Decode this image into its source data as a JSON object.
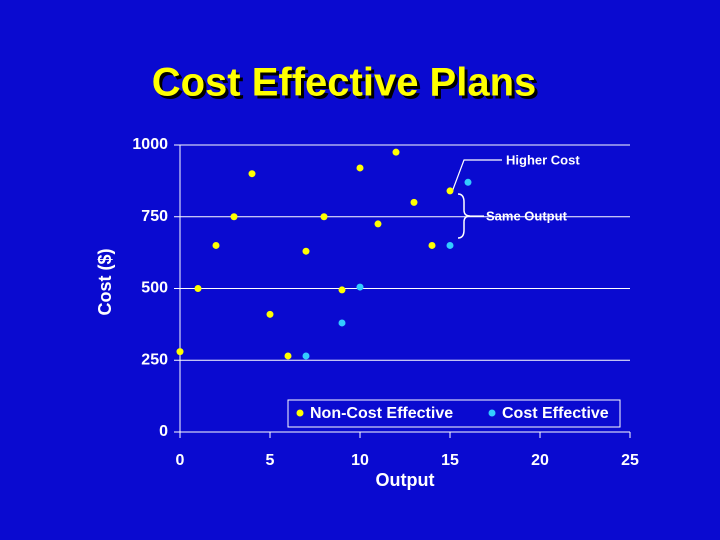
{
  "chart_data": {
    "type": "scatter",
    "title": "Cost Effective Plans",
    "x_label": "Output",
    "y_label": "Cost ($)",
    "xlim": [
      0,
      25
    ],
    "xticks": [
      0,
      5,
      10,
      15,
      20,
      25
    ],
    "ylim": [
      0,
      1000
    ],
    "yticks": [
      0,
      250,
      500,
      750,
      1000
    ],
    "grid": true,
    "legend": "bottom",
    "annotations": [
      "Higher Cost",
      "Same Output"
    ],
    "series": [
      {
        "name": "Non-Cost Effective",
        "color": "#ffff00",
        "x": [
          0,
          1,
          2,
          3,
          4,
          5,
          6,
          7,
          8,
          9,
          10,
          11,
          12,
          13,
          14,
          15
        ],
        "values": [
          280,
          500,
          650,
          750,
          900,
          410,
          265,
          630,
          750,
          495,
          920,
          725,
          975,
          800,
          650,
          840
        ]
      },
      {
        "name": "Cost Effective",
        "color": "#33ccff",
        "x": [
          7,
          9,
          10,
          15,
          16
        ],
        "values": [
          265,
          380,
          505,
          650,
          870
        ]
      }
    ]
  }
}
